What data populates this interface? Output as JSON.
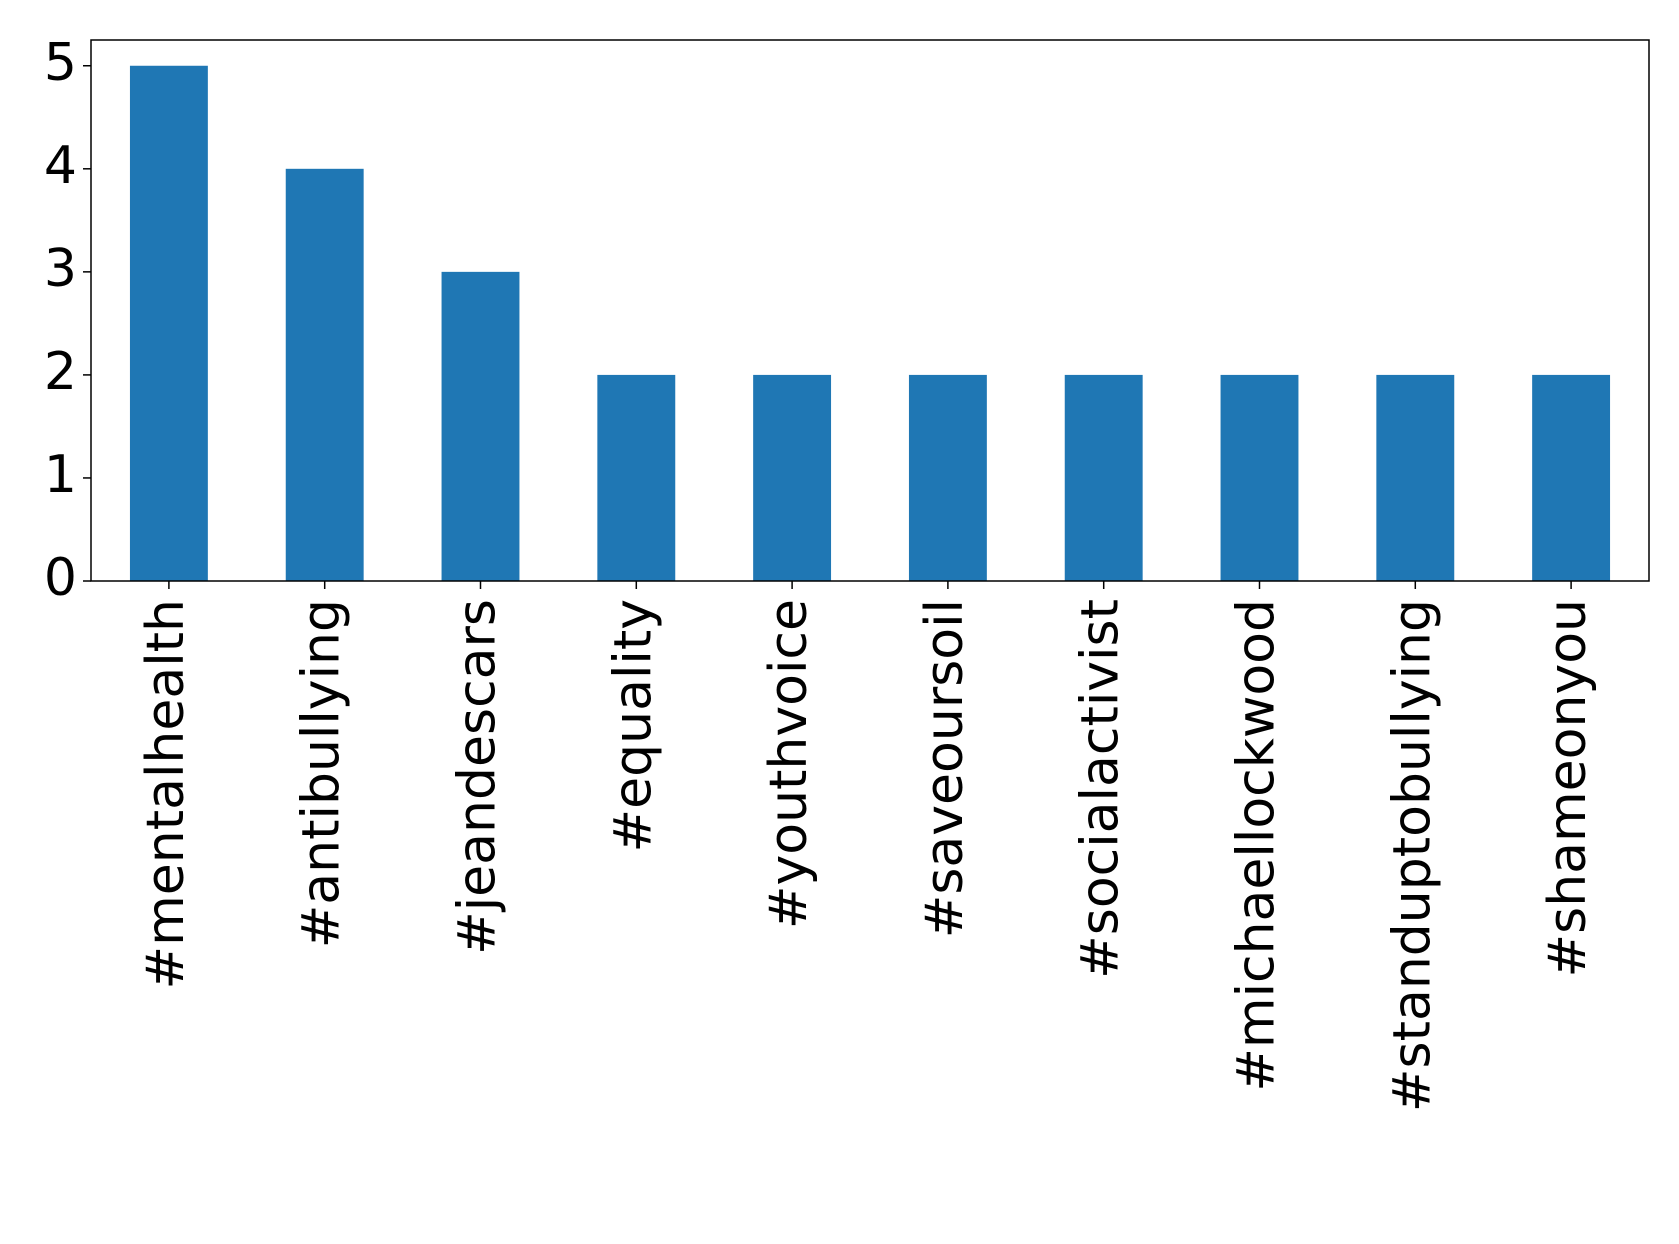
{
  "chart_data": {
    "type": "bar",
    "categories": [
      "#mentalhealth",
      "#antibullying",
      "#jeandescars",
      "#equality",
      "#youthvoice",
      "#saveoursoil",
      "#socialactivist",
      "#michaellockwood",
      "#standuptobullying",
      "#shameonyou"
    ],
    "values": [
      5,
      4,
      3,
      2,
      2,
      2,
      2,
      2,
      2,
      2
    ],
    "color": "#1f77b4",
    "ylim": [
      0,
      5.25
    ],
    "yticks": [
      0,
      1,
      2,
      3,
      4,
      5
    ],
    "grid": false
  }
}
